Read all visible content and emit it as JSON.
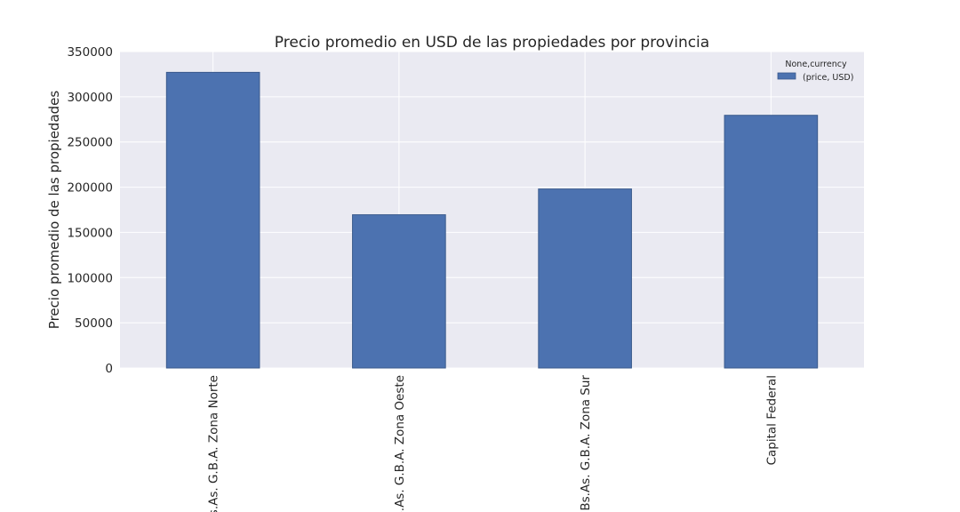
{
  "chart_data": {
    "type": "bar",
    "title": "Precio promedio en USD de las propiedades por provincia",
    "xlabel": "",
    "ylabel": "Precio promedio de las propiedades",
    "categories": [
      "Bs.As. G.B.A. Zona Norte",
      "Bs.As. G.B.A. Zona Oeste",
      "Bs.As. G.B.A. Zona Sur",
      "Capital Federal"
    ],
    "series": [
      {
        "name": "(price, USD)",
        "values": [
          327000,
          169500,
          198000,
          279500
        ],
        "color": "#4c72b0"
      }
    ],
    "ylim": [
      0,
      350000
    ],
    "yticks": [
      0,
      50000,
      100000,
      150000,
      200000,
      250000,
      300000,
      350000
    ],
    "ytick_labels": [
      "0",
      "50000",
      "100000",
      "150000",
      "200000",
      "250000",
      "300000",
      "350000"
    ],
    "legend": {
      "title": "None,currency",
      "placement": "top-right"
    },
    "grid": true,
    "colors": {
      "plot_background": "#eaeaf2",
      "grid": "#ffffff",
      "bar": "#4c72b0",
      "bar_edge": "#3a5a8c",
      "text": "#262626"
    }
  }
}
